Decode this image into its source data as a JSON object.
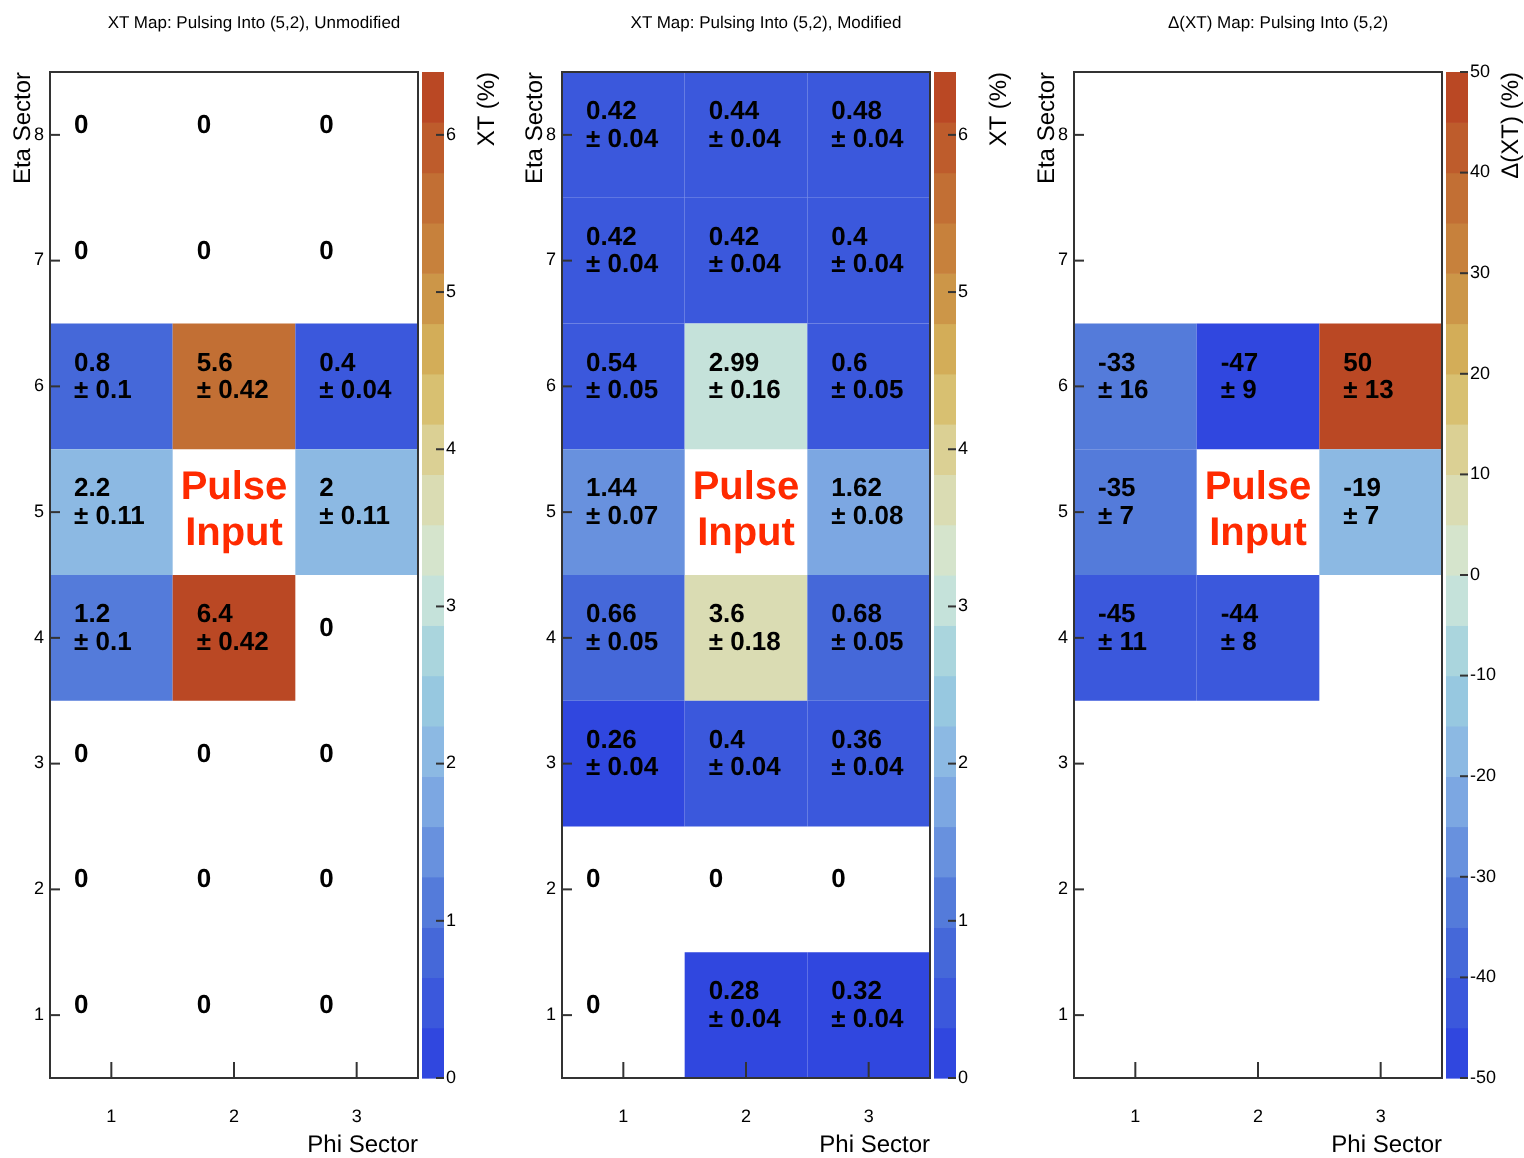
{
  "chart_data": [
    {
      "type": "heatmap",
      "title": "XT Map: Pulsing Into (5,2), Unmodified",
      "xlabel": "Phi Sector",
      "ylabel": "Eta Sector",
      "clabel": "XT (%)",
      "categories": [
        "1",
        "2",
        "3"
      ],
      "y_categories": [
        "8",
        "7",
        "6",
        "5",
        "4",
        "3",
        "2",
        "1"
      ],
      "cells": [
        [
          null,
          null,
          null
        ],
        [
          null,
          null,
          null
        ],
        [
          0.8,
          5.6,
          0.4
        ],
        [
          2.2,
          null,
          2
        ],
        [
          1.2,
          6.4,
          null
        ],
        [
          null,
          null,
          null
        ],
        [
          null,
          null,
          null
        ],
        [
          null,
          null,
          null
        ]
      ],
      "cell_labels": [
        [
          "0",
          "0",
          "0"
        ],
        [
          "0",
          "0",
          "0"
        ],
        [
          "0.8\n± 0.1",
          "5.6\n± 0.42",
          "0.4\n± 0.04"
        ],
        [
          "2.2\n± 0.11",
          null,
          "2\n± 0.11"
        ],
        [
          "1.2\n± 0.1",
          "6.4\n± 0.42",
          "0"
        ],
        [
          "0",
          "0",
          "0"
        ],
        [
          "0",
          "0",
          "0"
        ],
        [
          "0",
          "0",
          "0"
        ]
      ],
      "clim": [
        0,
        6.4
      ],
      "cticks": [
        0,
        1,
        2,
        3,
        4,
        5,
        6
      ],
      "annotations": [
        "Pulse Input"
      ]
    },
    {
      "type": "heatmap",
      "title": "XT Map: Pulsing Into (5,2), Modified",
      "xlabel": "Phi Sector",
      "ylabel": "Eta Sector",
      "clabel": "XT (%)",
      "categories": [
        "1",
        "2",
        "3"
      ],
      "y_categories": [
        "8",
        "7",
        "6",
        "5",
        "4",
        "3",
        "2",
        "1"
      ],
      "cells": [
        [
          0.42,
          0.44,
          0.48
        ],
        [
          0.42,
          0.42,
          0.4
        ],
        [
          0.54,
          2.99,
          0.6
        ],
        [
          1.44,
          null,
          1.62
        ],
        [
          0.66,
          3.6,
          0.68
        ],
        [
          0.26,
          0.4,
          0.36
        ],
        [
          null,
          null,
          null
        ],
        [
          null,
          0.28,
          0.32
        ]
      ],
      "cell_labels": [
        [
          "0.42\n± 0.04",
          "0.44\n± 0.04",
          "0.48\n± 0.04"
        ],
        [
          "0.42\n± 0.04",
          "0.42\n± 0.04",
          "0.4\n± 0.04"
        ],
        [
          "0.54\n± 0.05",
          "2.99\n± 0.16",
          "0.6\n± 0.05"
        ],
        [
          "1.44\n± 0.07",
          null,
          "1.62\n± 0.08"
        ],
        [
          "0.66\n± 0.05",
          "3.6\n± 0.18",
          "0.68\n± 0.05"
        ],
        [
          "0.26\n± 0.04",
          "0.4\n± 0.04",
          "0.36\n± 0.04"
        ],
        [
          "0",
          "0",
          "0"
        ],
        [
          "0",
          "0.28\n± 0.04",
          "0.32\n± 0.04"
        ]
      ],
      "clim": [
        0,
        6.4
      ],
      "cticks": [
        0,
        1,
        2,
        3,
        4,
        5,
        6
      ],
      "annotations": [
        "Pulse Input"
      ]
    },
    {
      "type": "heatmap",
      "title": "Δ(XT) Map: Pulsing Into (5,2)",
      "xlabel": "Phi Sector",
      "ylabel": "Eta Sector",
      "clabel": "Δ(XT) (%)",
      "categories": [
        "1",
        "2",
        "3"
      ],
      "y_categories": [
        "8",
        "7",
        "6",
        "5",
        "4",
        "3",
        "2",
        "1"
      ],
      "cells": [
        [
          null,
          null,
          null
        ],
        [
          null,
          null,
          null
        ],
        [
          -33,
          -47,
          50
        ],
        [
          -35,
          null,
          -19
        ],
        [
          -45,
          -44,
          null
        ],
        [
          null,
          null,
          null
        ],
        [
          null,
          null,
          null
        ],
        [
          null,
          null,
          null
        ]
      ],
      "cell_labels": [
        [
          null,
          null,
          null
        ],
        [
          null,
          null,
          null
        ],
        [
          "-33\n± 16",
          "-47\n± 9",
          "50\n± 13"
        ],
        [
          "-35\n± 7",
          null,
          "-19\n± 7"
        ],
        [
          "-45\n± 11",
          "-44\n± 8",
          null
        ],
        [
          null,
          null,
          null
        ],
        [
          null,
          null,
          null
        ],
        [
          null,
          null,
          null
        ]
      ],
      "clim": [
        -50,
        50
      ],
      "cticks": [
        -50,
        -40,
        -30,
        -20,
        -10,
        0,
        10,
        20,
        30,
        40,
        50
      ],
      "annotations": [
        "Pulse Input"
      ]
    }
  ]
}
